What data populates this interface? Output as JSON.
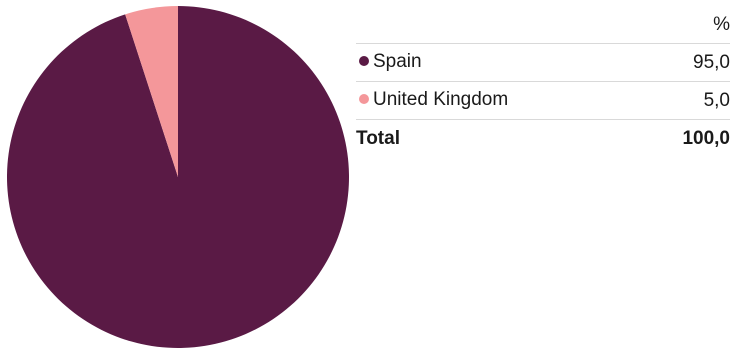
{
  "chart_data": {
    "type": "pie",
    "unit_label": "%",
    "slices": [
      {
        "name": "Spain",
        "value": 95.0,
        "display": "95,0",
        "color": "#5a1a45"
      },
      {
        "name": "United Kingdom",
        "value": 5.0,
        "display": "5,0",
        "color": "#f4979a"
      }
    ],
    "total_label": "Total",
    "total_display": "100,0",
    "start_angle_deg": 0,
    "direction": "clockwise"
  }
}
